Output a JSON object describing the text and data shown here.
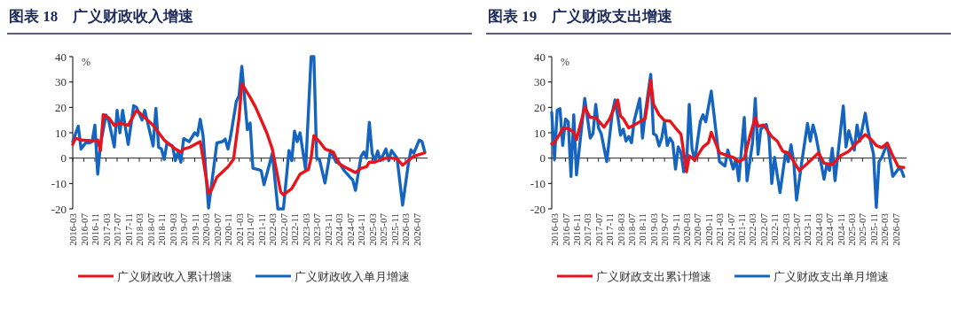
{
  "chart_data": [
    {
      "type": "line",
      "title": "图表 18　广义财政收入增速",
      "ylabel": "%",
      "xlim": [
        "2016-03",
        "2026-11"
      ],
      "ylim": [
        -20,
        40
      ],
      "yticks": [
        -20,
        -10,
        0,
        10,
        20,
        30,
        40
      ],
      "xticks": [
        "2016-03",
        "2016-07",
        "2016-11",
        "2017-03",
        "2017-07",
        "2017-11",
        "2018-03",
        "2018-07",
        "2018-11",
        "2019-03",
        "2019-07",
        "2019-11",
        "2020-03",
        "2020-07",
        "2020-11",
        "2021-03",
        "2021-07",
        "2021-11",
        "2022-03",
        "2022-07",
        "2022-11",
        "2023-03",
        "2023-07",
        "2023-11",
        "2024-03",
        "2024-07",
        "2024-11",
        "2025-03",
        "2025-07",
        "2025-11",
        "2026-03",
        "2026-07"
      ],
      "legend": "bottom",
      "line_style": "solid",
      "series": [
        {
          "name": "广义财政收入累计增速",
          "color": "#e8141c",
          "x": [
            "2016-03",
            "2016-04",
            "2016-06",
            "2016-11",
            "2016-12",
            "2017-01",
            "2017-02",
            "2017-04",
            "2017-06",
            "2017-08",
            "2017-11",
            "2018-02",
            "2018-04",
            "2018-08",
            "2018-12",
            "2019-04",
            "2019-06",
            "2019-07",
            "2019-09",
            "2020-01",
            "2020-02",
            "2020-04",
            "2020-05",
            "2020-07",
            "2020-11",
            "2021-01",
            "2021-03",
            "2021-04",
            "2021-07",
            "2021-09",
            "2022-01",
            "2022-03",
            "2022-06",
            "2022-07",
            "2022-10",
            "2023-01",
            "2023-04",
            "2023-05",
            "2023-06",
            "2023-08",
            "2023-10",
            "2024-01",
            "2024-03",
            "2024-06",
            "2024-09",
            "2024-11",
            "2025-01",
            "2025-02",
            "2025-04",
            "2025-07",
            "2025-09",
            "2025-12",
            "2026-02",
            "2026-04",
            "2026-06",
            "2026-10"
          ],
          "values": [
            5.4,
            7.9,
            7.1,
            6.8,
            7.1,
            3,
            17.2,
            15.9,
            12.9,
            13.8,
            12.9,
            18.8,
            17,
            13,
            7.1,
            3.6,
            2.4,
            3.6,
            4.2,
            6.5,
            0,
            -13.9,
            -12.7,
            -7.5,
            -3.4,
            -0.5,
            15.9,
            29.3,
            24,
            20,
            10,
            3.6,
            -13.3,
            -14.5,
            -12,
            -6.3,
            -4.5,
            0,
            8.9,
            6.5,
            3.6,
            2.4,
            -2.2,
            -4,
            -5.7,
            -4,
            -3.4,
            -1.6,
            -1.6,
            -0.2,
            0.1,
            -0.2,
            -2.8,
            -1,
            0.7,
            2.1
          ]
        },
        {
          "name": "广义财政收入单月增速",
          "color": "#1565c0",
          "x": [
            "2016-03",
            "2016-05",
            "2016-06",
            "2016-08",
            "2016-09",
            "2016-10",
            "2016-11",
            "2016-12",
            "2017-01",
            "2017-03",
            "2017-04",
            "2017-06",
            "2017-07",
            "2017-08",
            "2017-09",
            "2017-11",
            "2018-01",
            "2018-02",
            "2018-04",
            "2018-05",
            "2018-08",
            "2018-09",
            "2018-10",
            "2018-11",
            "2018-12",
            "2019-01",
            "2019-03",
            "2019-04",
            "2019-05",
            "2019-06",
            "2019-07",
            "2019-09",
            "2019-11",
            "2019-12",
            "2020-01",
            "2020-02",
            "2020-04",
            "2020-07",
            "2020-09",
            "2020-10",
            "2020-11",
            "2020-12",
            "2021-02",
            "2021-03",
            "2021-04",
            "2021-06",
            "2021-07",
            "2021-08",
            "2021-10",
            "2021-11",
            "2021-12",
            "2022-03",
            "2022-05",
            "2022-07",
            "2022-09",
            "2022-10",
            "2022-11",
            "2022-12",
            "2023-01",
            "2023-03",
            "2023-05",
            "2023-06",
            "2023-07",
            "2023-08",
            "2023-10",
            "2023-12",
            "2024-02",
            "2024-03",
            "2024-05",
            "2024-07",
            "2024-08",
            "2024-09",
            "2024-11",
            "2024-12",
            "2025-01",
            "2025-02",
            "2025-03",
            "2025-04",
            "2025-05",
            "2025-06",
            "2025-08",
            "2025-09",
            "2025-10",
            "2025-12",
            "2026-02",
            "2026-04",
            "2026-05",
            "2026-06",
            "2026-08",
            "2026-09",
            "2026-10"
          ],
          "values": [
            6.5,
            12.6,
            3.6,
            6.5,
            6,
            6.5,
            13,
            -6.3,
            5.4,
            17,
            14.7,
            4.4,
            18.8,
            10,
            18.8,
            5.4,
            20.7,
            20,
            15,
            18.8,
            4.8,
            19.6,
            4.2,
            3.6,
            -0.5,
            6,
            4.8,
            -1,
            2.4,
            -1.6,
            7.7,
            6.5,
            10,
            8.9,
            15.3,
            8.9,
            -19.7,
            6,
            6.5,
            7.5,
            3.6,
            8.9,
            22.3,
            24.6,
            36.2,
            11.2,
            13.8,
            -4,
            -4.5,
            -5,
            -10.5,
            1.9,
            -20,
            -20,
            3,
            -1,
            10.6,
            6.5,
            10,
            -4.5,
            40,
            40,
            0,
            -0.5,
            -9.8,
            3,
            -1.6,
            -1.6,
            -5,
            -7.5,
            -8.6,
            -12.7,
            0.7,
            2.4,
            0,
            14.1,
            1.9,
            -1,
            2.8,
            -1,
            3.6,
            -1,
            3,
            0,
            -18.5,
            -2.8,
            3.3,
            1.9,
            7.1,
            6.5,
            2.4
          ]
        }
      ]
    },
    {
      "type": "line",
      "title": "图表 19　广义财政支出增速",
      "ylabel": "%",
      "xlim": [
        "2016-02",
        "2026-11"
      ],
      "ylim": [
        -20,
        40
      ],
      "yticks": [
        -20,
        -10,
        0,
        10,
        20,
        30,
        40
      ],
      "xticks": [
        "2016-03",
        "2016-07",
        "2016-11",
        "2017-03",
        "2017-07",
        "2017-11",
        "2018-03",
        "2018-07",
        "2018-11",
        "2019-03",
        "2019-07",
        "2019-11",
        "2020-03",
        "2020-07",
        "2020-11",
        "2021-03",
        "2021-07",
        "2021-11",
        "2022-03",
        "2022-07",
        "2022-11",
        "2023-03",
        "2023-07",
        "2023-11",
        "2024-03",
        "2024-07",
        "2024-11",
        "2025-03",
        "2025-07",
        "2025-11",
        "2026-03",
        "2026-07"
      ],
      "legend": "bottom",
      "line_style": "solid",
      "series": [
        {
          "name": "广义财政支出累计增速",
          "color": "#e8141c",
          "x": [
            "2016-02",
            "2016-03",
            "2016-05",
            "2016-06",
            "2016-08",
            "2016-10",
            "2016-11",
            "2017-02",
            "2017-04",
            "2017-06",
            "2017-09",
            "2017-11",
            "2018-02",
            "2018-03",
            "2018-04",
            "2018-06",
            "2018-09",
            "2018-12",
            "2019-02",
            "2019-03",
            "2019-05",
            "2019-07",
            "2019-09",
            "2019-11",
            "2020-01",
            "2020-03",
            "2020-04",
            "2020-06",
            "2020-09",
            "2020-11",
            "2020-12",
            "2021-03",
            "2021-05",
            "2021-08",
            "2021-10",
            "2021-12",
            "2022-02",
            "2022-04",
            "2022-05",
            "2022-07",
            "2022-10",
            "2022-12",
            "2023-02",
            "2023-04",
            "2023-08",
            "2023-11",
            "2024-03",
            "2024-05",
            "2024-08",
            "2024-11",
            "2025-02",
            "2025-05",
            "2025-08",
            "2025-10",
            "2025-12",
            "2026-02",
            "2026-04",
            "2026-06",
            "2026-08",
            "2026-10"
          ],
          "values": [
            5.6,
            6.1,
            9.6,
            11.7,
            11.7,
            10.2,
            7.3,
            20,
            16,
            16,
            12.2,
            15.4,
            22.9,
            16.6,
            15.6,
            11.9,
            13.7,
            15.6,
            30.7,
            21.2,
            17.1,
            14.8,
            14.6,
            11.9,
            9.4,
            -5.4,
            0.9,
            -0.8,
            4.4,
            6.1,
            10.2,
            2.1,
            1.3,
            0.3,
            -1.4,
            -0.2,
            8.5,
            16,
            12.5,
            13.1,
            8.5,
            6.7,
            2.7,
            2.1,
            -4.9,
            -2,
            2.1,
            -2,
            -2.5,
            0.9,
            2.7,
            6.1,
            9.3,
            7.5,
            5,
            4.1,
            5.9,
            0.9,
            -3.4,
            -3.7
          ]
        },
        {
          "name": "广义财政支出单月增速",
          "color": "#1565c0",
          "x": [
            "2016-02",
            "2016-03",
            "2016-04",
            "2016-05",
            "2016-06",
            "2016-07",
            "2016-08",
            "2016-09",
            "2016-10",
            "2016-11",
            "2017-02",
            "2017-04",
            "2017-05",
            "2017-06",
            "2017-07",
            "2017-08",
            "2017-10",
            "2017-12",
            "2018-01",
            "2018-02",
            "2018-03",
            "2018-04",
            "2018-05",
            "2018-06",
            "2018-07",
            "2018-08",
            "2018-10",
            "2018-11",
            "2018-12",
            "2019-02",
            "2019-03",
            "2019-04",
            "2019-05",
            "2019-06",
            "2019-07",
            "2019-08",
            "2019-09",
            "2019-10",
            "2019-11",
            "2019-12",
            "2020-01",
            "2020-02",
            "2020-03",
            "2020-04",
            "2020-05",
            "2020-06",
            "2020-08",
            "2020-09",
            "2020-10",
            "2020-12",
            "2021-03",
            "2021-05",
            "2021-06",
            "2021-08",
            "2021-09",
            "2021-10",
            "2021-12",
            "2022-01",
            "2022-03",
            "2022-04",
            "2022-05",
            "2022-06",
            "2022-08",
            "2022-09",
            "2022-10",
            "2022-11",
            "2023-01",
            "2023-03",
            "2023-04",
            "2023-05",
            "2023-06",
            "2023-07",
            "2023-09",
            "2023-11",
            "2023-12",
            "2024-01",
            "2024-02",
            "2024-05",
            "2024-06",
            "2024-07",
            "2024-08",
            "2024-09",
            "2024-12",
            "2025-01",
            "2025-02",
            "2025-04",
            "2025-05",
            "2025-06",
            "2025-08",
            "2025-09",
            "2025-11",
            "2025-12",
            "2026-01",
            "2026-02",
            "2026-04",
            "2026-06",
            "2026-08",
            "2026-09",
            "2026-10"
          ],
          "values": [
            18,
            -0.5,
            18.9,
            19.5,
            5,
            15.4,
            14.3,
            -7.2,
            17.1,
            -6.6,
            23.5,
            7.9,
            9.6,
            21.2,
            11.9,
            9.6,
            -1.4,
            17.7,
            22.9,
            16.6,
            9,
            11.4,
            6.7,
            8.5,
            6.1,
            14.8,
            23.5,
            7.9,
            17.7,
            33,
            9.6,
            9,
            4.8,
            7.9,
            14.3,
            5,
            7.9,
            6.1,
            -4.3,
            4.4,
            2.1,
            -5.4,
            -3.1,
            21.2,
            3.8,
            -1,
            14.3,
            17.1,
            14.3,
            26.4,
            -1.4,
            -3.1,
            3.2,
            -4.3,
            -0.2,
            -8.9,
            16,
            -8.9,
            6.1,
            23.5,
            1.5,
            11.4,
            13.3,
            8.5,
            -10,
            0.3,
            -13.6,
            2.1,
            -1.4,
            5.2,
            -1.6,
            -16.5,
            -0.8,
            13.7,
            6.7,
            13.1,
            9,
            -8.3,
            -2.5,
            -4.8,
            3.8,
            -8.9,
            20.6,
            4.4,
            10.8,
            3.2,
            13.1,
            6.7,
            17.7,
            10.8,
            1.5,
            -19.4,
            -1.4,
            0.3,
            5.9,
            -7.2,
            -4.3,
            -4.3,
            -7.2
          ]
        }
      ]
    }
  ]
}
